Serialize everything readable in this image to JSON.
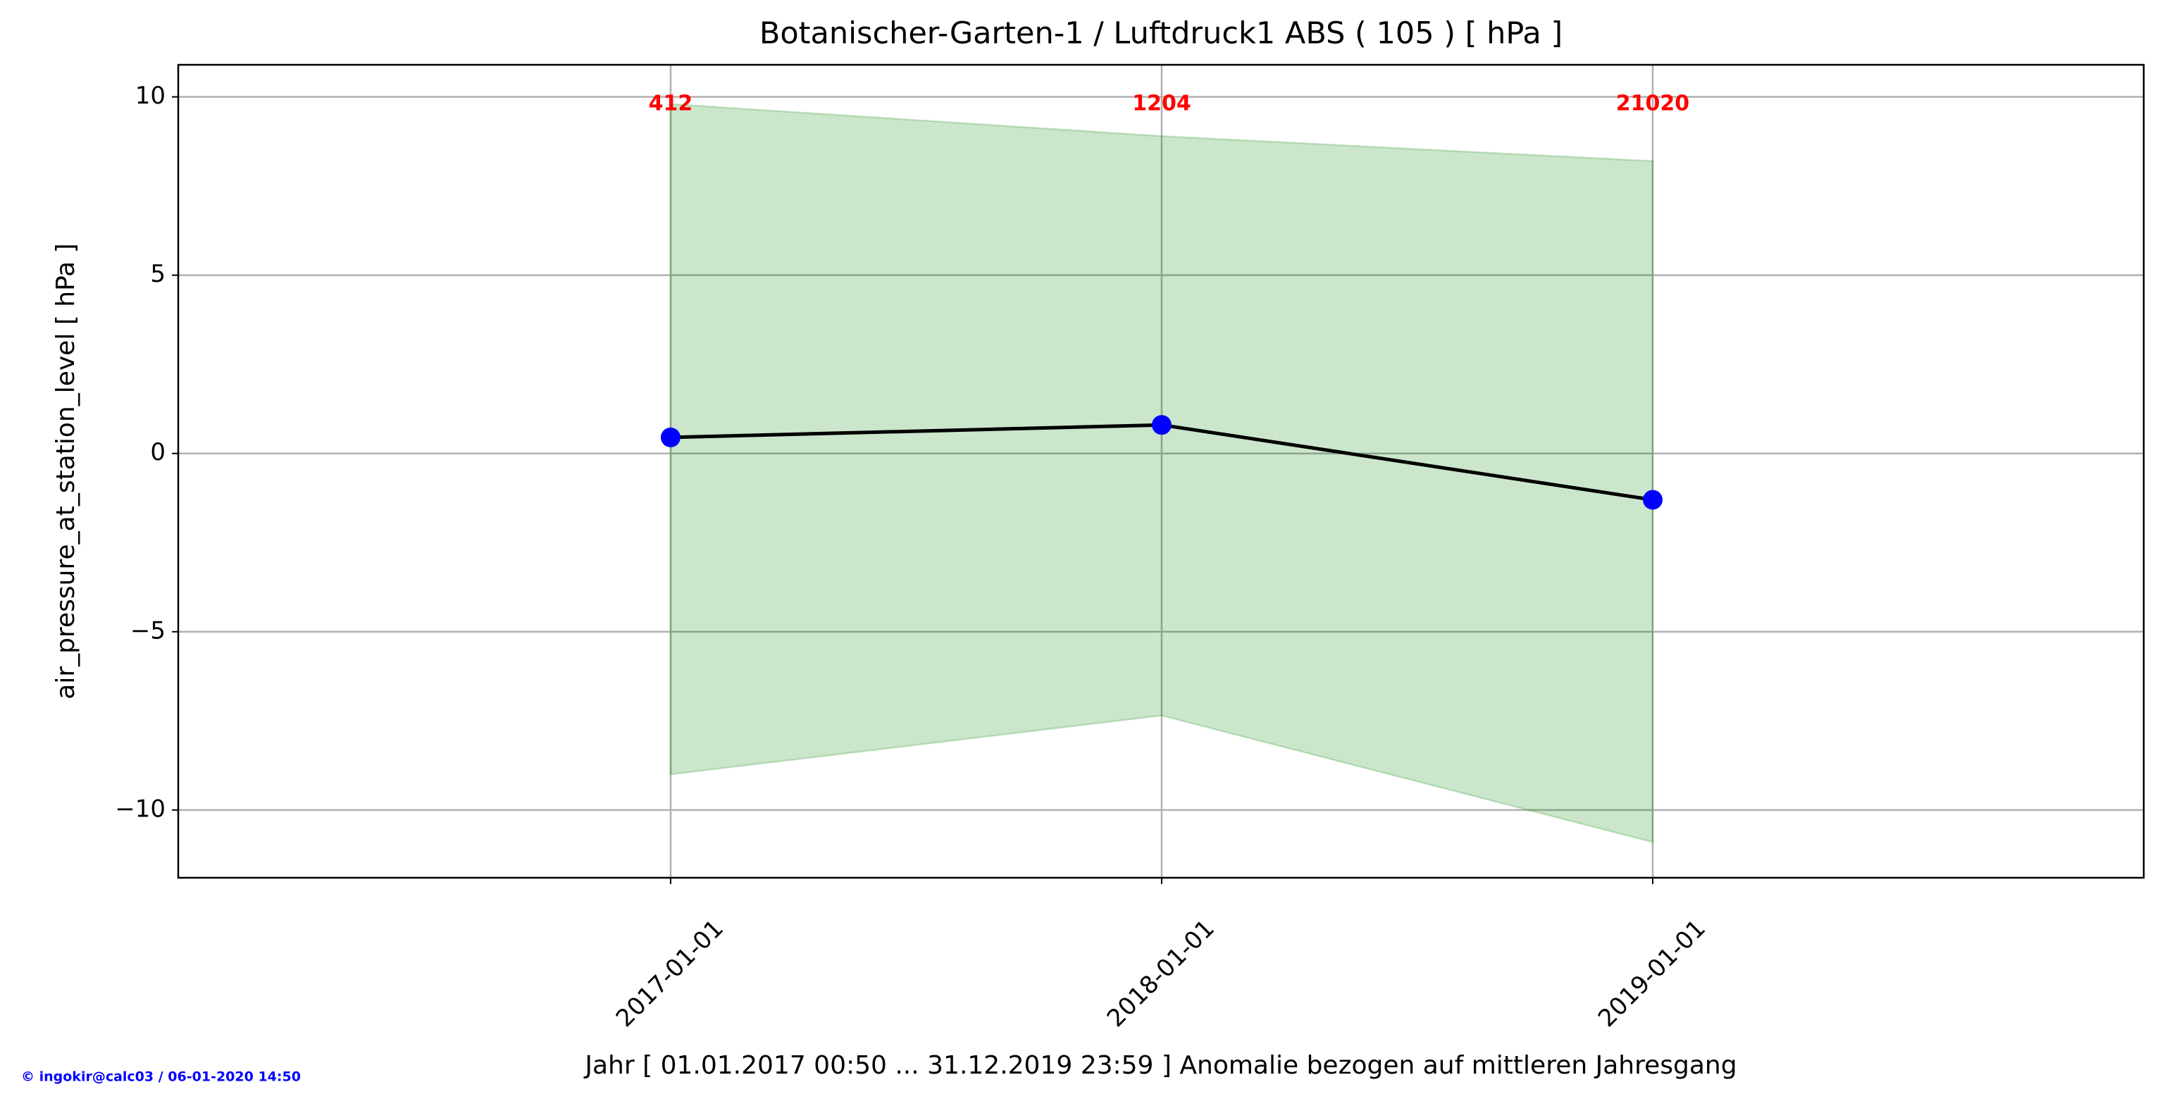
{
  "chart_data": {
    "type": "line",
    "title": "Botanischer-Garten-1 / Luftdruck1 ABS ( 105 ) [ hPa ]",
    "xlabel": "Jahr [ 01.01.2017 00:50 ... 31.12.2019 23:59 ] Anomalie bezogen auf mittleren Jahresgang",
    "ylabel": "air_pressure_at_station_level [ hPa ]",
    "x": [
      "2017-01-01",
      "2018-01-01",
      "2019-01-01"
    ],
    "values": [
      0.45,
      0.8,
      -1.3
    ],
    "band_upper": [
      9.8,
      8.9,
      8.2
    ],
    "band_lower": [
      -9.0,
      -7.35,
      -10.9
    ],
    "counts": [
      412,
      1204,
      21020
    ],
    "line_color": "#000000",
    "marker_color": "#0000ff",
    "band_color": "#008000",
    "band_alpha": 0.2,
    "count_color": "#ff0000",
    "xlim": [
      "2016-01-01",
      "2020-01-01"
    ],
    "ylim": [
      -11.9,
      10.9
    ],
    "xticks": [
      "2017-01-01",
      "2018-01-01",
      "2019-01-01"
    ],
    "yticks": [
      {
        "value": -10,
        "label": "−10"
      },
      {
        "value": -5,
        "label": "−5"
      },
      0,
      5,
      10
    ],
    "grid": true
  },
  "footer": "© ingokir@calc03 / 06-01-2020 14:50"
}
